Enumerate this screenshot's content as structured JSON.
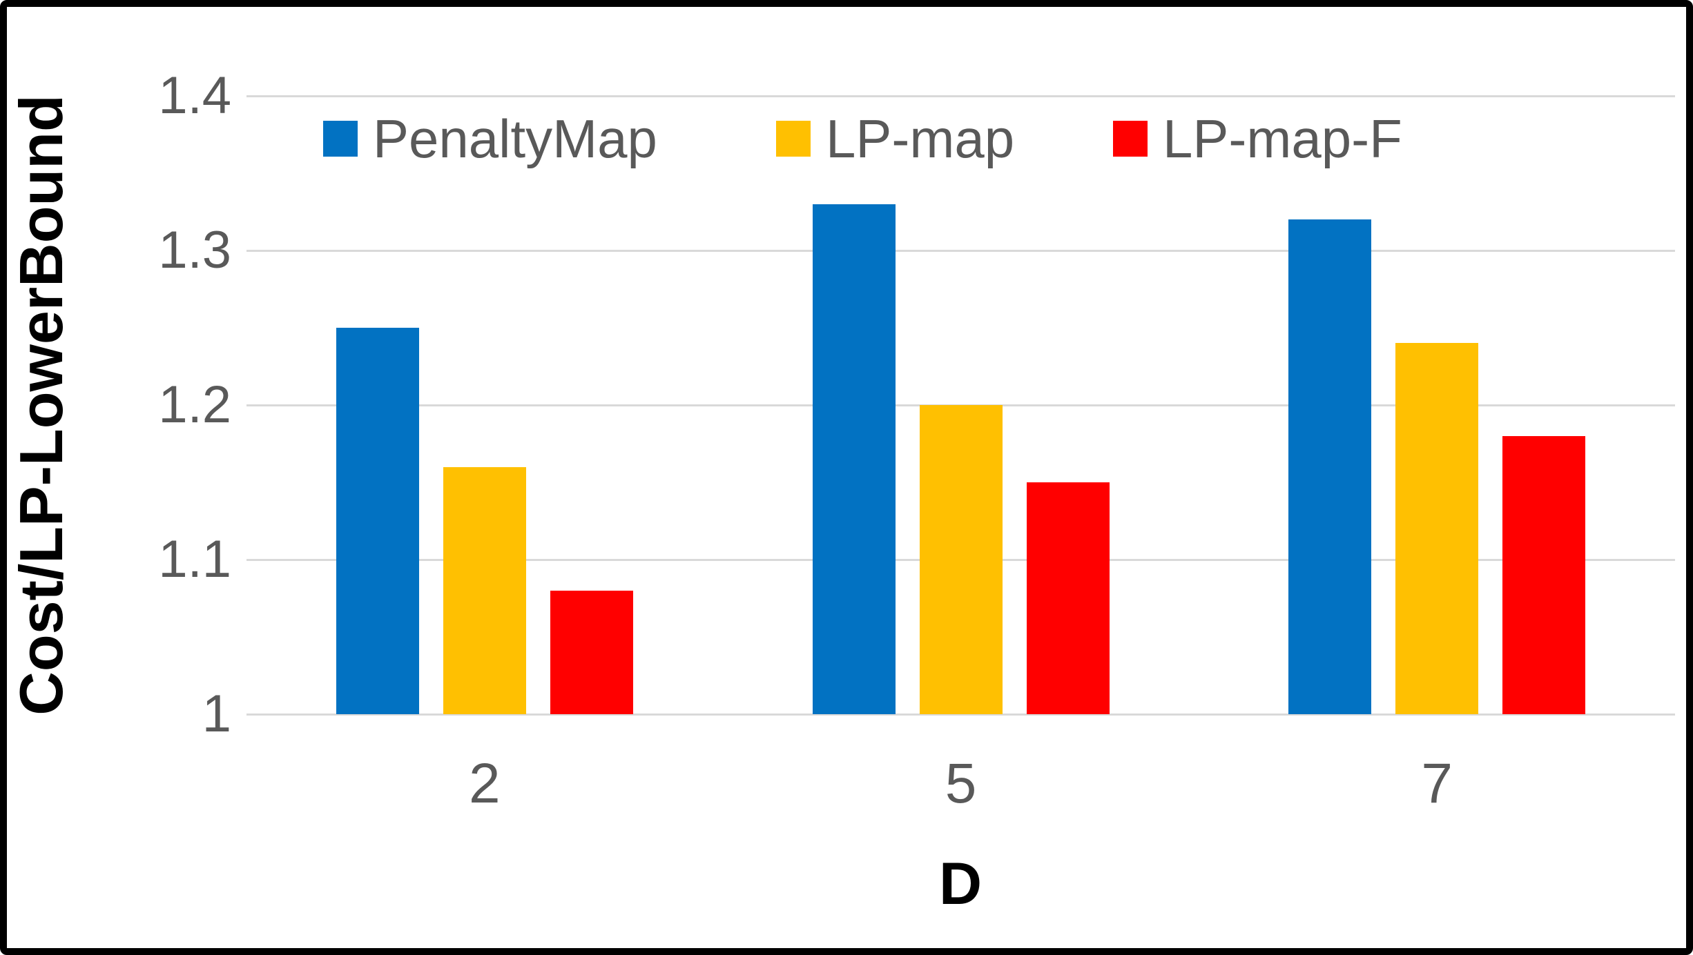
{
  "chart_data": {
    "type": "bar",
    "title": "",
    "xlabel": "D",
    "ylabel": "Cost/LP-LowerBound",
    "categories": [
      "2",
      "5",
      "7"
    ],
    "series": [
      {
        "name": "PenaltyMap",
        "color": "#0272C2",
        "values": [
          1.25,
          1.33,
          1.32
        ]
      },
      {
        "name": "LP-map",
        "color": "#FFC001",
        "values": [
          1.16,
          1.2,
          1.24
        ]
      },
      {
        "name": "LP-map-F",
        "color": "#FF0000",
        "values": [
          1.08,
          1.15,
          1.18
        ]
      }
    ],
    "ylim": [
      1.0,
      1.4
    ],
    "yticks": [
      1.4,
      1.3,
      1.2,
      1.1,
      1.0
    ],
    "ytick_labels": [
      "1.4",
      "1.3",
      "1.2",
      "1.1",
      "1"
    ],
    "grid": true,
    "legend_position": "top-inside"
  },
  "colors": {
    "background": "#FFFFFF",
    "frame_border": "#000000",
    "gridline": "#D9D9D9",
    "tick_text": "#595959",
    "axis_title_text": "#000000"
  }
}
